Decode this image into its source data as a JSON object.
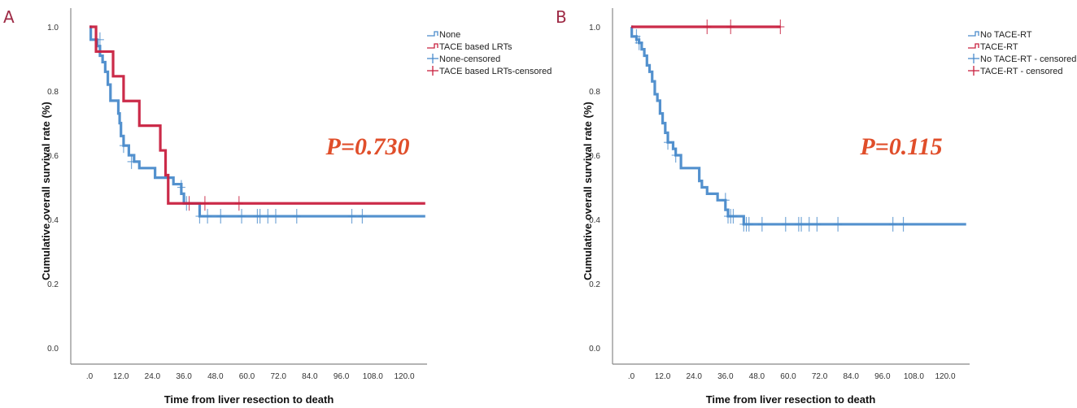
{
  "figure": {
    "colors": {
      "blue": "#4a8bcb",
      "red": "#c8203f",
      "pvalue": "#e04e2a",
      "panel_label": "#9e2a45",
      "axis": "#888888"
    }
  },
  "chart_data": [
    {
      "type": "line",
      "step": true,
      "panel_label": "A",
      "title": "",
      "xlabel": "Time from liver resection to death",
      "ylabel": "Cumulative overall survival rate (%)",
      "xlim": [
        -5,
        128
      ],
      "ylim": [
        -0.05,
        1.05
      ],
      "xticks": [
        ".0",
        "12.0",
        "24.0",
        "36.0",
        "48.0",
        "60.0",
        "72.0",
        "84.0",
        "96.0",
        "108.0",
        "120.0"
      ],
      "xtick_values": [
        0,
        12,
        24,
        36,
        48,
        60,
        72,
        84,
        96,
        108,
        120
      ],
      "yticks": [
        "0.0",
        "0.2",
        "0.4",
        "0.6",
        "0.8",
        "1.0"
      ],
      "ytick_values": [
        0,
        0.2,
        0.4,
        0.6,
        0.8,
        1.0
      ],
      "annotation": "P=0.730",
      "legend_position": "top-right",
      "legend": [
        "None",
        "TACE based LRTs",
        "None-censored",
        "TACE based LRTs-censored"
      ],
      "series": [
        {
          "name": "None",
          "color": "blue",
          "steps": [
            [
              0,
              1.0
            ],
            [
              0.5,
              0.96
            ],
            [
              3,
              0.94
            ],
            [
              4,
              0.91
            ],
            [
              5,
              0.89
            ],
            [
              6,
              0.86
            ],
            [
              7,
              0.82
            ],
            [
              8,
              0.77
            ],
            [
              11,
              0.73
            ],
            [
              11.5,
              0.7
            ],
            [
              12,
              0.66
            ],
            [
              13,
              0.63
            ],
            [
              15,
              0.6
            ],
            [
              17,
              0.58
            ],
            [
              19,
              0.56
            ],
            [
              25,
              0.53
            ],
            [
              32,
              0.51
            ],
            [
              35,
              0.48
            ],
            [
              36,
              0.45
            ],
            [
              42,
              0.41
            ],
            [
              128,
              0.41
            ]
          ],
          "censored": [
            [
              4,
              0.96
            ],
            [
              13,
              0.63
            ],
            [
              16,
              0.58
            ],
            [
              35,
              0.5
            ],
            [
              37,
              0.45
            ],
            [
              42,
              0.41
            ],
            [
              45,
              0.41
            ],
            [
              50,
              0.41
            ],
            [
              58,
              0.41
            ],
            [
              64,
              0.41
            ],
            [
              65,
              0.41
            ],
            [
              68,
              0.41
            ],
            [
              71,
              0.41
            ],
            [
              79,
              0.41
            ],
            [
              100,
              0.41
            ],
            [
              104,
              0.41
            ]
          ]
        },
        {
          "name": "TACE based LRTs",
          "color": "red",
          "steps": [
            [
              0,
              1.0
            ],
            [
              2.5,
              0.923
            ],
            [
              9,
              0.846
            ],
            [
              13,
              0.769
            ],
            [
              19,
              0.692
            ],
            [
              27,
              0.615
            ],
            [
              29,
              0.538
            ],
            [
              30,
              0.45
            ],
            [
              128,
              0.45
            ]
          ],
          "censored": [
            [
              38,
              0.45
            ],
            [
              44,
              0.45
            ],
            [
              57,
              0.45
            ]
          ]
        }
      ]
    },
    {
      "type": "line",
      "step": true,
      "panel_label": "B",
      "title": "",
      "xlabel": "Time from liver resection to death",
      "ylabel": "Cumulative overall survival rate (%)",
      "xlim": [
        -5,
        128
      ],
      "ylim": [
        -0.05,
        1.05
      ],
      "xticks": [
        ".0",
        "12.0",
        "24.0",
        "36.0",
        "48.0",
        "60.0",
        "72.0",
        "84.0",
        "96.0",
        "108.0",
        "120.0"
      ],
      "xtick_values": [
        0,
        12,
        24,
        36,
        48,
        60,
        72,
        84,
        96,
        108,
        120
      ],
      "yticks": [
        "0.0",
        "0.2",
        "0.4",
        "0.6",
        "0.8",
        "1.0"
      ],
      "ytick_values": [
        0,
        0.2,
        0.4,
        0.6,
        0.8,
        1.0
      ],
      "annotation": "P=0.115",
      "legend_position": "top-right",
      "legend": [
        "No TACE-RT",
        "TACE-RT",
        "No TACE-RT - censored",
        "TACE-RT - censored"
      ],
      "series": [
        {
          "name": "No TACE-RT",
          "color": "blue",
          "steps": [
            [
              0,
              1.0
            ],
            [
              0.2,
              0.97
            ],
            [
              2,
              0.96
            ],
            [
              3,
              0.95
            ],
            [
              4,
              0.93
            ],
            [
              5,
              0.91
            ],
            [
              6,
              0.88
            ],
            [
              7,
              0.86
            ],
            [
              8,
              0.83
            ],
            [
              9,
              0.79
            ],
            [
              10,
              0.77
            ],
            [
              11,
              0.73
            ],
            [
              12,
              0.7
            ],
            [
              13,
              0.67
            ],
            [
              14,
              0.64
            ],
            [
              16,
              0.62
            ],
            [
              17,
              0.6
            ],
            [
              19,
              0.56
            ],
            [
              26,
              0.52
            ],
            [
              27,
              0.5
            ],
            [
              29,
              0.48
            ],
            [
              33,
              0.46
            ],
            [
              36,
              0.43
            ],
            [
              37,
              0.41
            ],
            [
              43,
              0.385
            ],
            [
              128,
              0.385
            ]
          ],
          "censored": [
            [
              2,
              0.97
            ],
            [
              3,
              0.95
            ],
            [
              14,
              0.64
            ],
            [
              17,
              0.6
            ],
            [
              36,
              0.46
            ],
            [
              37,
              0.41
            ],
            [
              38,
              0.41
            ],
            [
              39,
              0.41
            ],
            [
              43,
              0.385
            ],
            [
              44,
              0.385
            ],
            [
              45,
              0.385
            ],
            [
              50,
              0.385
            ],
            [
              59,
              0.385
            ],
            [
              64,
              0.385
            ],
            [
              65,
              0.385
            ],
            [
              68,
              0.385
            ],
            [
              71,
              0.385
            ],
            [
              79,
              0.385
            ],
            [
              100,
              0.385
            ],
            [
              104,
              0.385
            ]
          ]
        },
        {
          "name": "TACE-RT",
          "color": "red",
          "steps": [
            [
              0,
              1.0
            ],
            [
              57,
              1.0
            ]
          ],
          "censored": [
            [
              29,
              1.0
            ],
            [
              38,
              1.0
            ],
            [
              57,
              1.0
            ]
          ]
        }
      ]
    }
  ]
}
